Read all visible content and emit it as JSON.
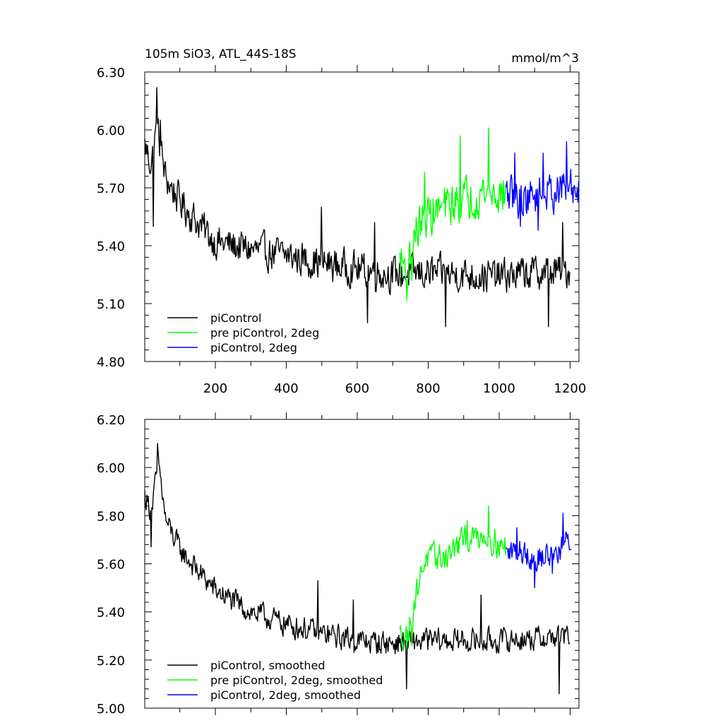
{
  "chart_data": [
    {
      "type": "line",
      "title": "105m SiO3, ATL_44S-18S",
      "units": "mmol/m^3",
      "xlim": [
        1,
        1225
      ],
      "ylim": [
        4.8,
        6.3
      ],
      "x_ticks": [
        200,
        400,
        600,
        800,
        1000,
        1200
      ],
      "x_tick_labels": [
        "200",
        "400",
        "600",
        "800",
        "1000",
        "1200"
      ],
      "y_ticks": [
        4.8,
        5.1,
        5.4,
        5.7,
        6.0,
        6.3
      ],
      "y_tick_labels": [
        "4.80",
        "5.10",
        "5.40",
        "5.70",
        "6.00",
        "6.30"
      ],
      "legend_position": "bottom-left",
      "series": [
        {
          "name": "piControl",
          "color": "#000000",
          "x_range": [
            1,
            1200
          ],
          "anchors": [
            [
              1,
              5.92
            ],
            [
              20,
              5.82
            ],
            [
              35,
              6.02
            ],
            [
              60,
              5.75
            ],
            [
              100,
              5.63
            ],
            [
              150,
              5.52
            ],
            [
              200,
              5.42
            ],
            [
              300,
              5.38
            ],
            [
              400,
              5.35
            ],
            [
              500,
              5.31
            ],
            [
              600,
              5.28
            ],
            [
              700,
              5.25
            ],
            [
              800,
              5.26
            ],
            [
              900,
              5.25
            ],
            [
              1000,
              5.24
            ],
            [
              1100,
              5.26
            ],
            [
              1200,
              5.27
            ]
          ],
          "noise": 0.08,
          "spikes": [
            [
              35,
              6.22
            ],
            [
              45,
              6.05
            ],
            [
              500,
              5.6
            ],
            [
              650,
              5.52
            ],
            [
              1180,
              5.52
            ]
          ],
          "dips": [
            [
              25,
              5.5
            ],
            [
              630,
              5.0
            ],
            [
              850,
              4.98
            ],
            [
              1140,
              4.98
            ]
          ]
        },
        {
          "name": "pre piControl, 2deg",
          "color": "#00ff00",
          "x_range": [
            720,
            1020
          ],
          "anchors": [
            [
              720,
              5.32
            ],
            [
              745,
              5.3
            ],
            [
              760,
              5.45
            ],
            [
              790,
              5.55
            ],
            [
              850,
              5.6
            ],
            [
              900,
              5.64
            ],
            [
              960,
              5.68
            ],
            [
              1020,
              5.66
            ]
          ],
          "noise": 0.1,
          "spikes": [
            [
              790,
              5.78
            ],
            [
              890,
              5.97
            ],
            [
              970,
              6.01
            ]
          ],
          "dips": [
            [
              740,
              5.12
            ],
            [
              755,
              5.22
            ]
          ]
        },
        {
          "name": "piControl, 2deg",
          "color": "#0000ff",
          "x_range": [
            1020,
            1225
          ],
          "anchors": [
            [
              1020,
              5.66
            ],
            [
              1060,
              5.64
            ],
            [
              1100,
              5.66
            ],
            [
              1150,
              5.68
            ],
            [
              1200,
              5.7
            ],
            [
              1225,
              5.69
            ]
          ],
          "noise": 0.09,
          "spikes": [
            [
              1045,
              5.88
            ],
            [
              1125,
              5.88
            ],
            [
              1190,
              5.94
            ]
          ],
          "dips": [
            [
              1060,
              5.5
            ],
            [
              1110,
              5.48
            ]
          ]
        }
      ]
    },
    {
      "type": "line",
      "title": "",
      "units": "",
      "xlim": [
        1,
        1225
      ],
      "ylim": [
        5.0,
        6.2
      ],
      "x_ticks": [
        200,
        400,
        600,
        800,
        1000,
        1200
      ],
      "x_tick_labels": [],
      "y_ticks": [
        5.0,
        5.2,
        5.4,
        5.6,
        5.8,
        6.0,
        6.2
      ],
      "y_tick_labels": [
        "5.00",
        "5.20",
        "5.40",
        "5.60",
        "5.80",
        "6.00",
        "6.20"
      ],
      "legend_position": "bottom-left",
      "series": [
        {
          "name": "piControl, smoothed",
          "color": "#000000",
          "x_range": [
            1,
            1200
          ],
          "anchors": [
            [
              1,
              5.88
            ],
            [
              20,
              5.82
            ],
            [
              40,
              6.02
            ],
            [
              60,
              5.78
            ],
            [
              100,
              5.66
            ],
            [
              150,
              5.57
            ],
            [
              200,
              5.49
            ],
            [
              300,
              5.4
            ],
            [
              400,
              5.35
            ],
            [
              500,
              5.31
            ],
            [
              600,
              5.28
            ],
            [
              700,
              5.27
            ],
            [
              800,
              5.28
            ],
            [
              900,
              5.28
            ],
            [
              1000,
              5.28
            ],
            [
              1100,
              5.29
            ],
            [
              1200,
              5.3
            ]
          ],
          "noise": 0.045,
          "spikes": [
            [
              38,
              6.1
            ],
            [
              490,
              5.53
            ],
            [
              590,
              5.45
            ],
            [
              950,
              5.47
            ]
          ],
          "dips": [
            [
              20,
              5.67
            ],
            [
              740,
              5.08
            ],
            [
              1170,
              5.06
            ]
          ]
        },
        {
          "name": "pre piControl, 2deg, smoothed",
          "color": "#00ff00",
          "x_range": [
            720,
            1020
          ],
          "anchors": [
            [
              720,
              5.3
            ],
            [
              745,
              5.32
            ],
            [
              770,
              5.5
            ],
            [
              790,
              5.62
            ],
            [
              850,
              5.63
            ],
            [
              900,
              5.7
            ],
            [
              960,
              5.72
            ],
            [
              1020,
              5.66
            ]
          ],
          "noise": 0.05,
          "spikes": [
            [
              970,
              5.84
            ],
            [
              910,
              5.78
            ]
          ],
          "dips": [
            [
              740,
              5.25
            ],
            [
              755,
              5.26
            ]
          ]
        },
        {
          "name": "piControl, 2deg, smoothed",
          "color": "#0000ff",
          "x_range": [
            1020,
            1205
          ],
          "anchors": [
            [
              1020,
              5.64
            ],
            [
              1060,
              5.66
            ],
            [
              1100,
              5.62
            ],
            [
              1150,
              5.64
            ],
            [
              1205,
              5.7
            ]
          ],
          "noise": 0.05,
          "spikes": [
            [
              1180,
              5.81
            ],
            [
              1050,
              5.75
            ]
          ],
          "dips": [
            [
              1100,
              5.5
            ],
            [
              1150,
              5.56
            ]
          ]
        }
      ]
    }
  ]
}
